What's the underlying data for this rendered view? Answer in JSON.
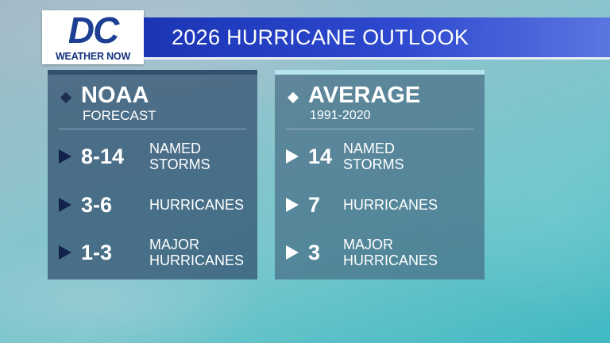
{
  "logo": {
    "mark": "DC",
    "subtitle": "WEATHER NOW"
  },
  "title": "2026 HURRICANE OUTLOOK",
  "panels": [
    {
      "heading": "NOAA",
      "subheading": "FORECAST",
      "rows": [
        {
          "value": "8-14",
          "label": "NAMED\nSTORMS"
        },
        {
          "value": "3-6",
          "label": "HURRICANES"
        },
        {
          "value": "1-3",
          "label": "MAJOR\nHURRICANES"
        }
      ]
    },
    {
      "heading": "AVERAGE",
      "subheading": "1991-2020",
      "rows": [
        {
          "value": "14",
          "label": "NAMED\nSTORMS"
        },
        {
          "value": "7",
          "label": "HURRICANES"
        },
        {
          "value": "3",
          "label": "MAJOR\nHURRICANES"
        }
      ]
    }
  ],
  "colors": {
    "title_bar": "#2e49cf",
    "logo_blue": "#1c3f93",
    "panel": "#304e6e"
  },
  "icons": {
    "bullet_heading": "diamond-icon",
    "bullet_row": "play-triangle-icon"
  }
}
